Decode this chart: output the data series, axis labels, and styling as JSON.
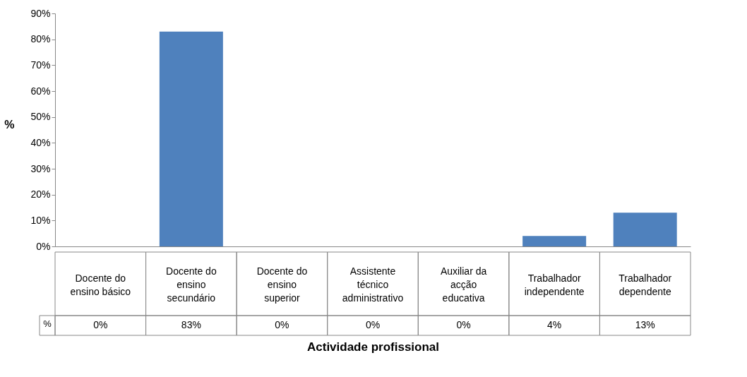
{
  "chart_data": {
    "type": "bar",
    "xlabel": "Actividade profissional",
    "ylabel": "%",
    "categories": [
      "Docente do ensino básico",
      "Docente do ensino secundário",
      "Docente do ensino superior",
      "Assistente técnico administrativo",
      "Auxiliar da acção educativa",
      "Trabalhador independente",
      "Trabalhador dependente"
    ],
    "series": [
      {
        "name": "%",
        "color": "#4f81bd",
        "values": [
          0,
          83,
          0,
          0,
          0,
          4,
          13
        ],
        "value_labels": [
          "0%",
          "83%",
          "0%",
          "0%",
          "0%",
          "4%",
          "13%"
        ]
      }
    ],
    "ylim": [
      0,
      90
    ],
    "yticks": [
      {
        "value": 0,
        "label": "0%"
      },
      {
        "value": 10,
        "label": "10%"
      },
      {
        "value": 20,
        "label": "20%"
      },
      {
        "value": 30,
        "label": "30%"
      },
      {
        "value": 40,
        "label": "40%"
      },
      {
        "value": 50,
        "label": "50%"
      },
      {
        "value": 60,
        "label": "60%"
      },
      {
        "value": 70,
        "label": "70%"
      },
      {
        "value": 80,
        "label": "80%"
      },
      {
        "value": 90,
        "label": "90%"
      }
    ],
    "grid": false
  }
}
